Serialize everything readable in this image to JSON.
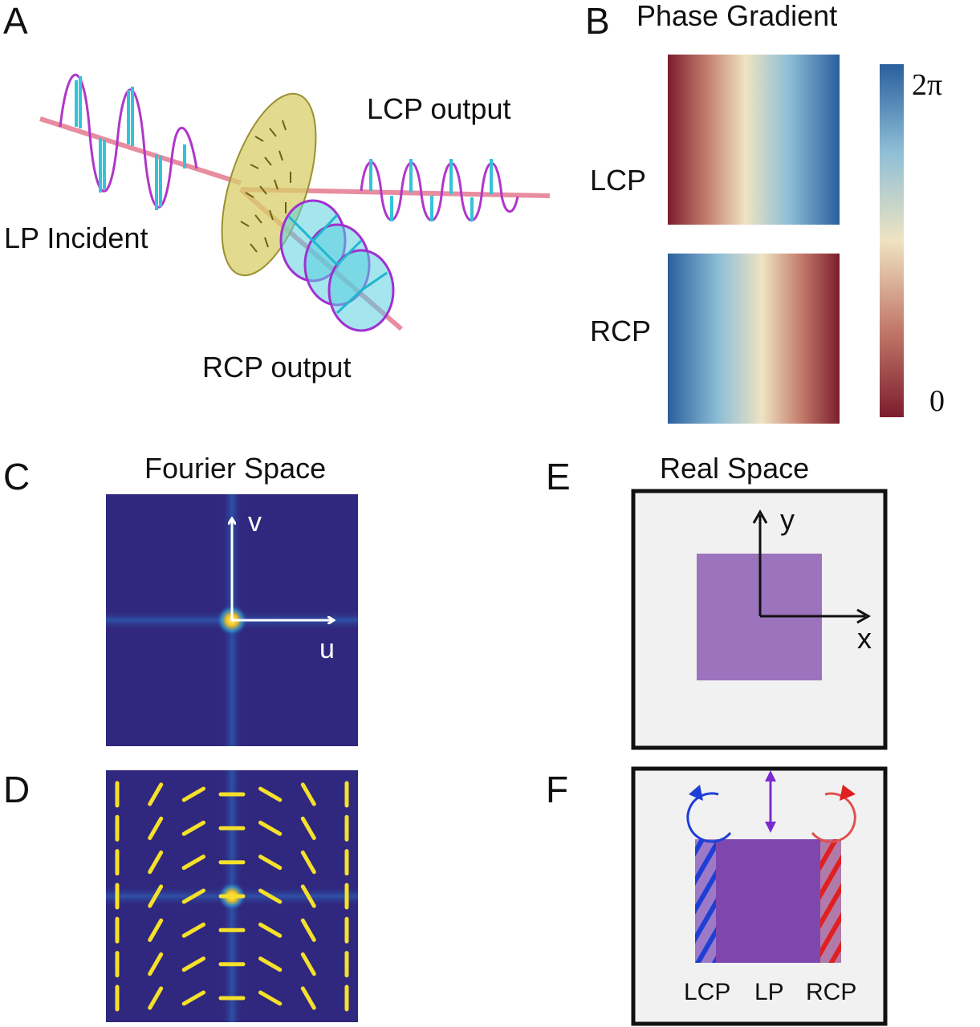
{
  "panels": {
    "a": {
      "letter": "A",
      "lp_incident": "LP Incident",
      "lcp_output": "LCP output",
      "rcp_output": "RCP output"
    },
    "b": {
      "letter": "B",
      "title": "Phase Gradient",
      "lcp_label": "LCP",
      "rcp_label": "RCP",
      "colorbar_max": "2π",
      "colorbar_min": "0"
    },
    "c": {
      "letter": "C",
      "title": "Fourier Space",
      "axis_v": "v",
      "axis_u": "u"
    },
    "d": {
      "letter": "D"
    },
    "e": {
      "letter": "E",
      "title": "Real Space",
      "axis_y": "y",
      "axis_x": "x"
    },
    "f": {
      "letter": "F",
      "label_lcp": "LCP",
      "label_lp": "LP",
      "label_rcp": "RCP"
    }
  },
  "colors": {
    "phase_low": "#7c1d2e",
    "phase_mid": "#efe3c2",
    "phase_high": "#2a5f9e",
    "fourier_bg": "#30287f",
    "nanorod": "#f5e02a",
    "square": "#9c73bd",
    "lcp_blue": "#1d3fd6",
    "rcp_red": "#e02020"
  }
}
